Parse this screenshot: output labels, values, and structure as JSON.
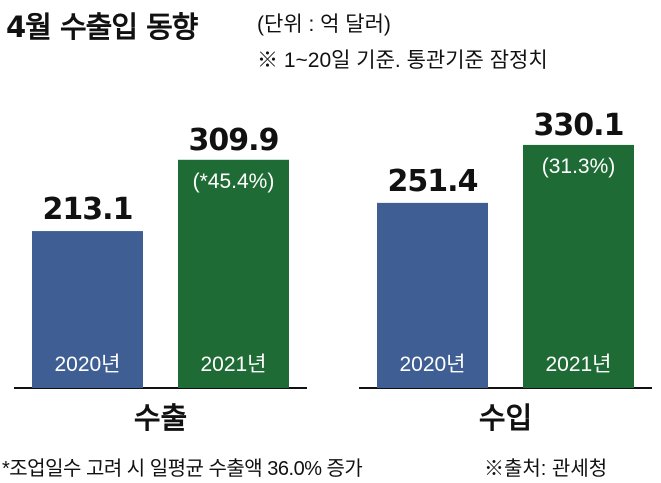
{
  "header": {
    "title": "4월 수출입 동향",
    "unit": "(단위 : 억 달러)",
    "note": "※ 1~20일 기준. 통관기준 잠정치"
  },
  "footer": {
    "footnote": "*조업일수 고려 시 일평균 수출액 36.0% 증가",
    "source": "※출처: 관세청"
  },
  "colors": {
    "2020년": "#3f5e93",
    "2021년": "#1f6b35"
  },
  "chart_data": [
    {
      "type": "bar",
      "group_label": "수출",
      "categories": [
        "2020년",
        "2021년"
      ],
      "values": [
        213.1,
        309.9
      ],
      "value_labels": [
        "213.1",
        "309.9"
      ],
      "change_label": "(*45.4%)"
    },
    {
      "type": "bar",
      "group_label": "수입",
      "categories": [
        "2020년",
        "2021년"
      ],
      "values": [
        251.4,
        330.1
      ],
      "value_labels": [
        "251.4",
        "330.1"
      ],
      "change_label": "(31.3%)"
    }
  ]
}
